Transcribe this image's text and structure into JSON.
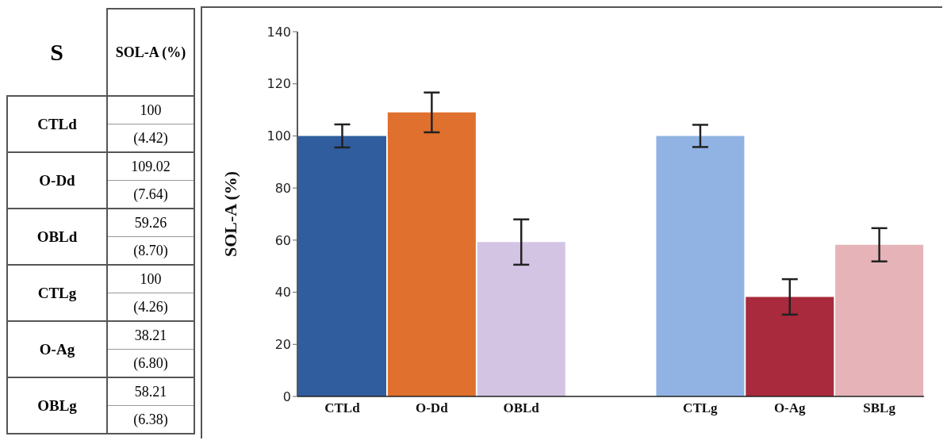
{
  "chart_data": [
    {
      "type": "other",
      "annotations": [
        "S",
        "SOL-A (%)",
        "CTLd",
        "100",
        "(4.42)",
        "O-Dd",
        "109.02",
        "(7.64)",
        "OBLd",
        "59.26",
        "(8.70)",
        "CTLg",
        "100",
        "(4.26)",
        "O-Ag",
        "38.21",
        "(6.80)",
        "OBLg",
        "58.21",
        "(6.38)"
      ]
    },
    {
      "type": "bar",
      "ylabel": "SOL-A (%)",
      "categories": [
        "CTLd",
        "O-Dd",
        "OBLd",
        null,
        "CTLg",
        "O-Ag",
        "SBLg"
      ],
      "values": [
        100,
        109.02,
        59.26,
        null,
        100,
        38.21,
        58.21
      ],
      "errors": [
        4.42,
        7.64,
        8.7,
        null,
        4.26,
        6.8,
        6.38
      ],
      "colors": [
        "#2f5d9e",
        "#e0702e",
        "#d4c4e4",
        "#ffffff",
        "#91b3e3",
        "#a82a3c",
        "#e5b3b8"
      ],
      "ylim": [
        0,
        140
      ],
      "yticks": [
        0,
        20,
        40,
        60,
        80,
        100,
        120,
        140
      ]
    }
  ]
}
